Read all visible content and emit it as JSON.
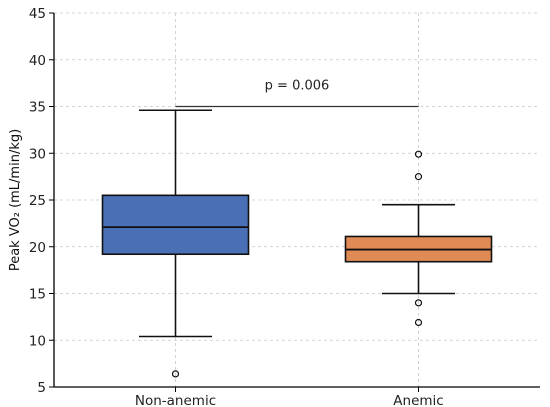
{
  "chart_data": {
    "type": "box",
    "title": "",
    "xlabel": "",
    "ylabel": "Peak VO₂ (mL/min/kg)",
    "ylim": [
      5,
      45
    ],
    "yticks": [
      5,
      10,
      15,
      20,
      25,
      30,
      35,
      40,
      45
    ],
    "grid": true,
    "categories": [
      "Non-anemic",
      "Anemic"
    ],
    "groups": [
      {
        "name": "Non-anemic",
        "color": "#4a6fb5",
        "whisker_low": 10.4,
        "q1": 19.2,
        "median": 22.1,
        "q3": 25.5,
        "whisker_high": 34.6,
        "outliers": [
          6.4
        ]
      },
      {
        "name": "Anemic",
        "color": "#e08a55",
        "whisker_low": 15.0,
        "q1": 18.4,
        "median": 19.7,
        "q3": 21.1,
        "whisker_high": 24.5,
        "outliers": [
          29.9,
          27.5,
          14.0,
          11.9
        ]
      }
    ],
    "annotation": {
      "text": "p = 0.006",
      "y": 35.0
    }
  }
}
